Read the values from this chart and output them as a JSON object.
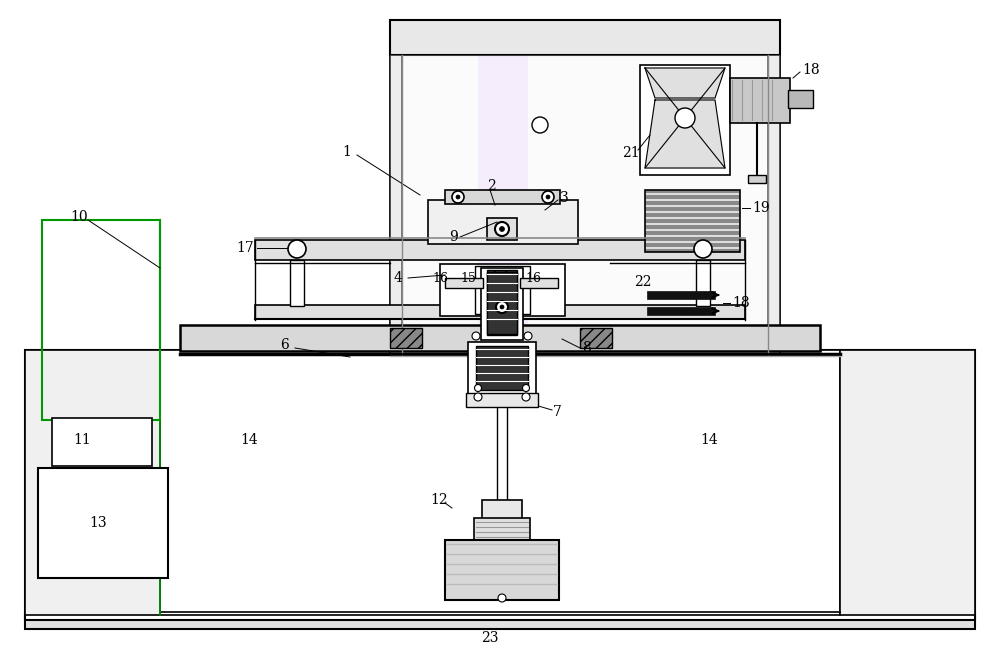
{
  "bg": "#ffffff",
  "lc": "#000000",
  "gray": "#aaaaaa",
  "dgray": "#666666",
  "lgray": "#e8e8e8",
  "green": "#008800",
  "purple": "#cc88cc"
}
